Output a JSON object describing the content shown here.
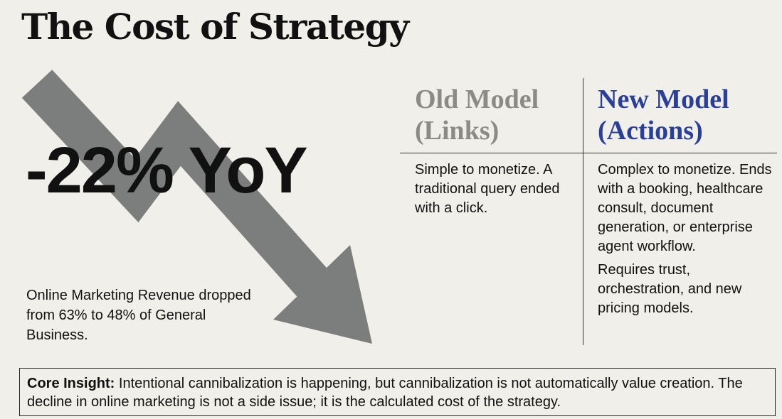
{
  "title": "The Cost of Strategy",
  "stat": {
    "value": "-22% YoY",
    "note": "Online Marketing Revenue dropped from 63% to 48% of General Business."
  },
  "comparison": {
    "columns": [
      {
        "heading": "Old Model (Links)",
        "paragraphs": [
          "Simple to monetize. A traditional query ended with a click."
        ]
      },
      {
        "heading": "New Model (Actions)",
        "paragraphs": [
          "Complex to monetize. Ends with a booking, healthcare consult, document generation, or enterprise agent workflow.",
          "Requires trust, orchestration, and new pricing models."
        ]
      }
    ]
  },
  "insight": {
    "label": "Core Insight:",
    "text": "Intentional cannibalization is happening, but cannibalization is not automatically value creation. The decline in online marketing is not a side issue; it is the calculated cost of the strategy."
  }
}
